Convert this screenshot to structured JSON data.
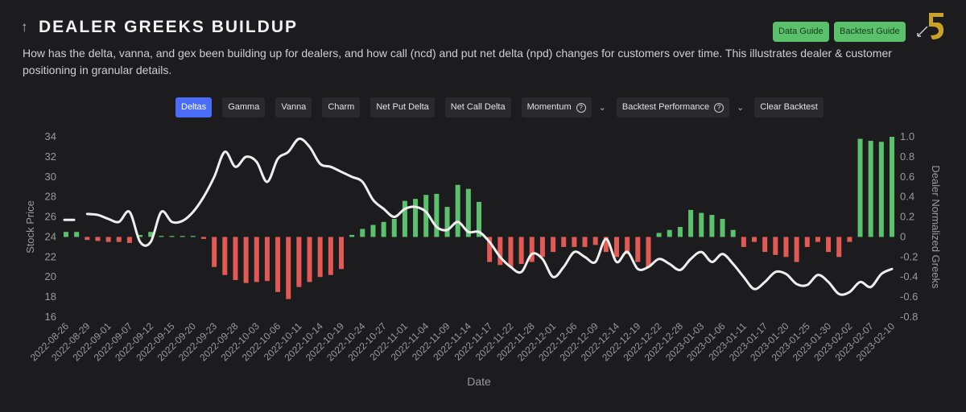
{
  "header": {
    "title": "DEALER GREEKS BUILDUP",
    "description": "How has the delta, vanna, and gex been building up for dealers, and how call (ncd) and put net delta (npd) changes for customers over time. This illustrates dealer & customer positioning in granular details.",
    "buttons": [
      "Data Guide",
      "Backtest Guide"
    ]
  },
  "tabs": [
    {
      "label": "Deltas",
      "active": true
    },
    {
      "label": "Gamma"
    },
    {
      "label": "Vanna"
    },
    {
      "label": "Charm"
    },
    {
      "label": "Net Put Delta"
    },
    {
      "label": "Net Call Delta"
    },
    {
      "label": "Momentum",
      "help": true,
      "dropdown": true
    },
    {
      "label": "Backtest Performance",
      "help": true,
      "dropdown": true
    },
    {
      "label": "Clear Backtest"
    }
  ],
  "chart_data": {
    "type": "combo",
    "x_label": "Date",
    "y_label": "Stock Price",
    "y2_label": "Dealer Normalized Greeks",
    "categories": [
      "2022-08-26",
      null,
      "2022-08-29",
      null,
      "2022-09-01",
      null,
      "2022-09-07",
      null,
      "2022-09-12",
      null,
      "2022-09-15",
      null,
      "2022-09-20",
      null,
      "2022-09-23",
      null,
      "2022-09-28",
      null,
      "2022-10-03",
      null,
      "2022-10-06",
      null,
      "2022-10-11",
      null,
      "2022-10-14",
      null,
      "2022-10-19",
      null,
      "2022-10-24",
      null,
      "2022-10-27",
      null,
      "2022-11-01",
      null,
      "2022-11-04",
      null,
      "2022-11-09",
      null,
      "2022-11-14",
      null,
      "2022-11-17",
      null,
      "2022-11-22",
      null,
      "2022-11-28",
      null,
      "2022-12-01",
      null,
      "2022-12-06",
      null,
      "2022-12-09",
      null,
      "2022-12-14",
      null,
      "2022-12-19",
      null,
      "2022-12-22",
      null,
      "2022-12-28",
      null,
      "2023-01-03",
      null,
      "2023-01-06",
      null,
      "2023-01-11",
      null,
      "2023-01-17",
      null,
      "2023-01-20",
      null,
      "2023-01-25",
      null,
      "2023-01-30",
      null,
      "2023-02-02",
      null,
      "2023-02-07",
      null,
      "2023-02-10"
    ],
    "ylim": [
      16,
      34
    ],
    "yticks": [
      16,
      18,
      20,
      22,
      24,
      26,
      28,
      30,
      32,
      34
    ],
    "y2lim": [
      -0.8,
      1.0
    ],
    "y2ticks": [
      -0.8,
      -0.6,
      -0.4,
      -0.2,
      0,
      0.2,
      0.4,
      0.6,
      0.8,
      {
        "value": 1.0,
        "label": "1.0"
      }
    ],
    "series": [
      {
        "type": "bar",
        "axis": "y2",
        "color": "#5cc16c",
        "negative_color": "#e35a55",
        "values": [
          0.05,
          0.05,
          -0.03,
          -0.04,
          -0.05,
          -0.05,
          -0.06,
          0.02,
          0.05,
          0.01,
          0.01,
          0.01,
          0.01,
          -0.02,
          -0.3,
          -0.38,
          -0.43,
          -0.46,
          -0.45,
          -0.44,
          -0.55,
          -0.62,
          -0.5,
          -0.45,
          -0.4,
          -0.38,
          -0.32,
          0.02,
          0.08,
          0.12,
          0.15,
          0.18,
          0.36,
          0.38,
          0.42,
          0.43,
          0.3,
          0.52,
          0.48,
          0.35,
          -0.25,
          -0.28,
          -0.3,
          -0.27,
          -0.25,
          -0.2,
          -0.15,
          -0.1,
          -0.1,
          -0.1,
          -0.08,
          -0.15,
          -0.2,
          -0.17,
          -0.25,
          -0.3,
          0.04,
          0.07,
          0.1,
          0.27,
          0.24,
          0.22,
          0.18,
          0.07,
          -0.1,
          -0.05,
          -0.15,
          -0.18,
          -0.2,
          -0.25,
          -0.1,
          -0.05,
          -0.15,
          -0.2,
          -0.05,
          0.98,
          0.96,
          0.95,
          1.0
        ]
      },
      {
        "type": "line",
        "color": "#efefef",
        "values": [
          25.7,
          null,
          26.3,
          26.2,
          25.8,
          25.5,
          26.5,
          23.5,
          23.5,
          26.5,
          25.5,
          25.6,
          26.5,
          28,
          30,
          32.5,
          31,
          32,
          31.5,
          29.5,
          31.8,
          32.5,
          33.8,
          33,
          31.3,
          31,
          30.5,
          30,
          29.5,
          27.7,
          26.8,
          26,
          26.8,
          27,
          26.5,
          25,
          24.7,
          25.5,
          24.5,
          24.5,
          23.5,
          22,
          21,
          20.5,
          22.3,
          21.8,
          20,
          21,
          22.5,
          22,
          21.5,
          23.8,
          21.5,
          22.5,
          20.8,
          21,
          21.8,
          21.3,
          20.7,
          21.8,
          22.5,
          21.5,
          22.3,
          21.3,
          20,
          18.8,
          19.5,
          20.5,
          20.3,
          19.3,
          19.2,
          20.2,
          19.5,
          18.3,
          18.5,
          19.5,
          19,
          20.3,
          20.8
        ]
      }
    ]
  }
}
